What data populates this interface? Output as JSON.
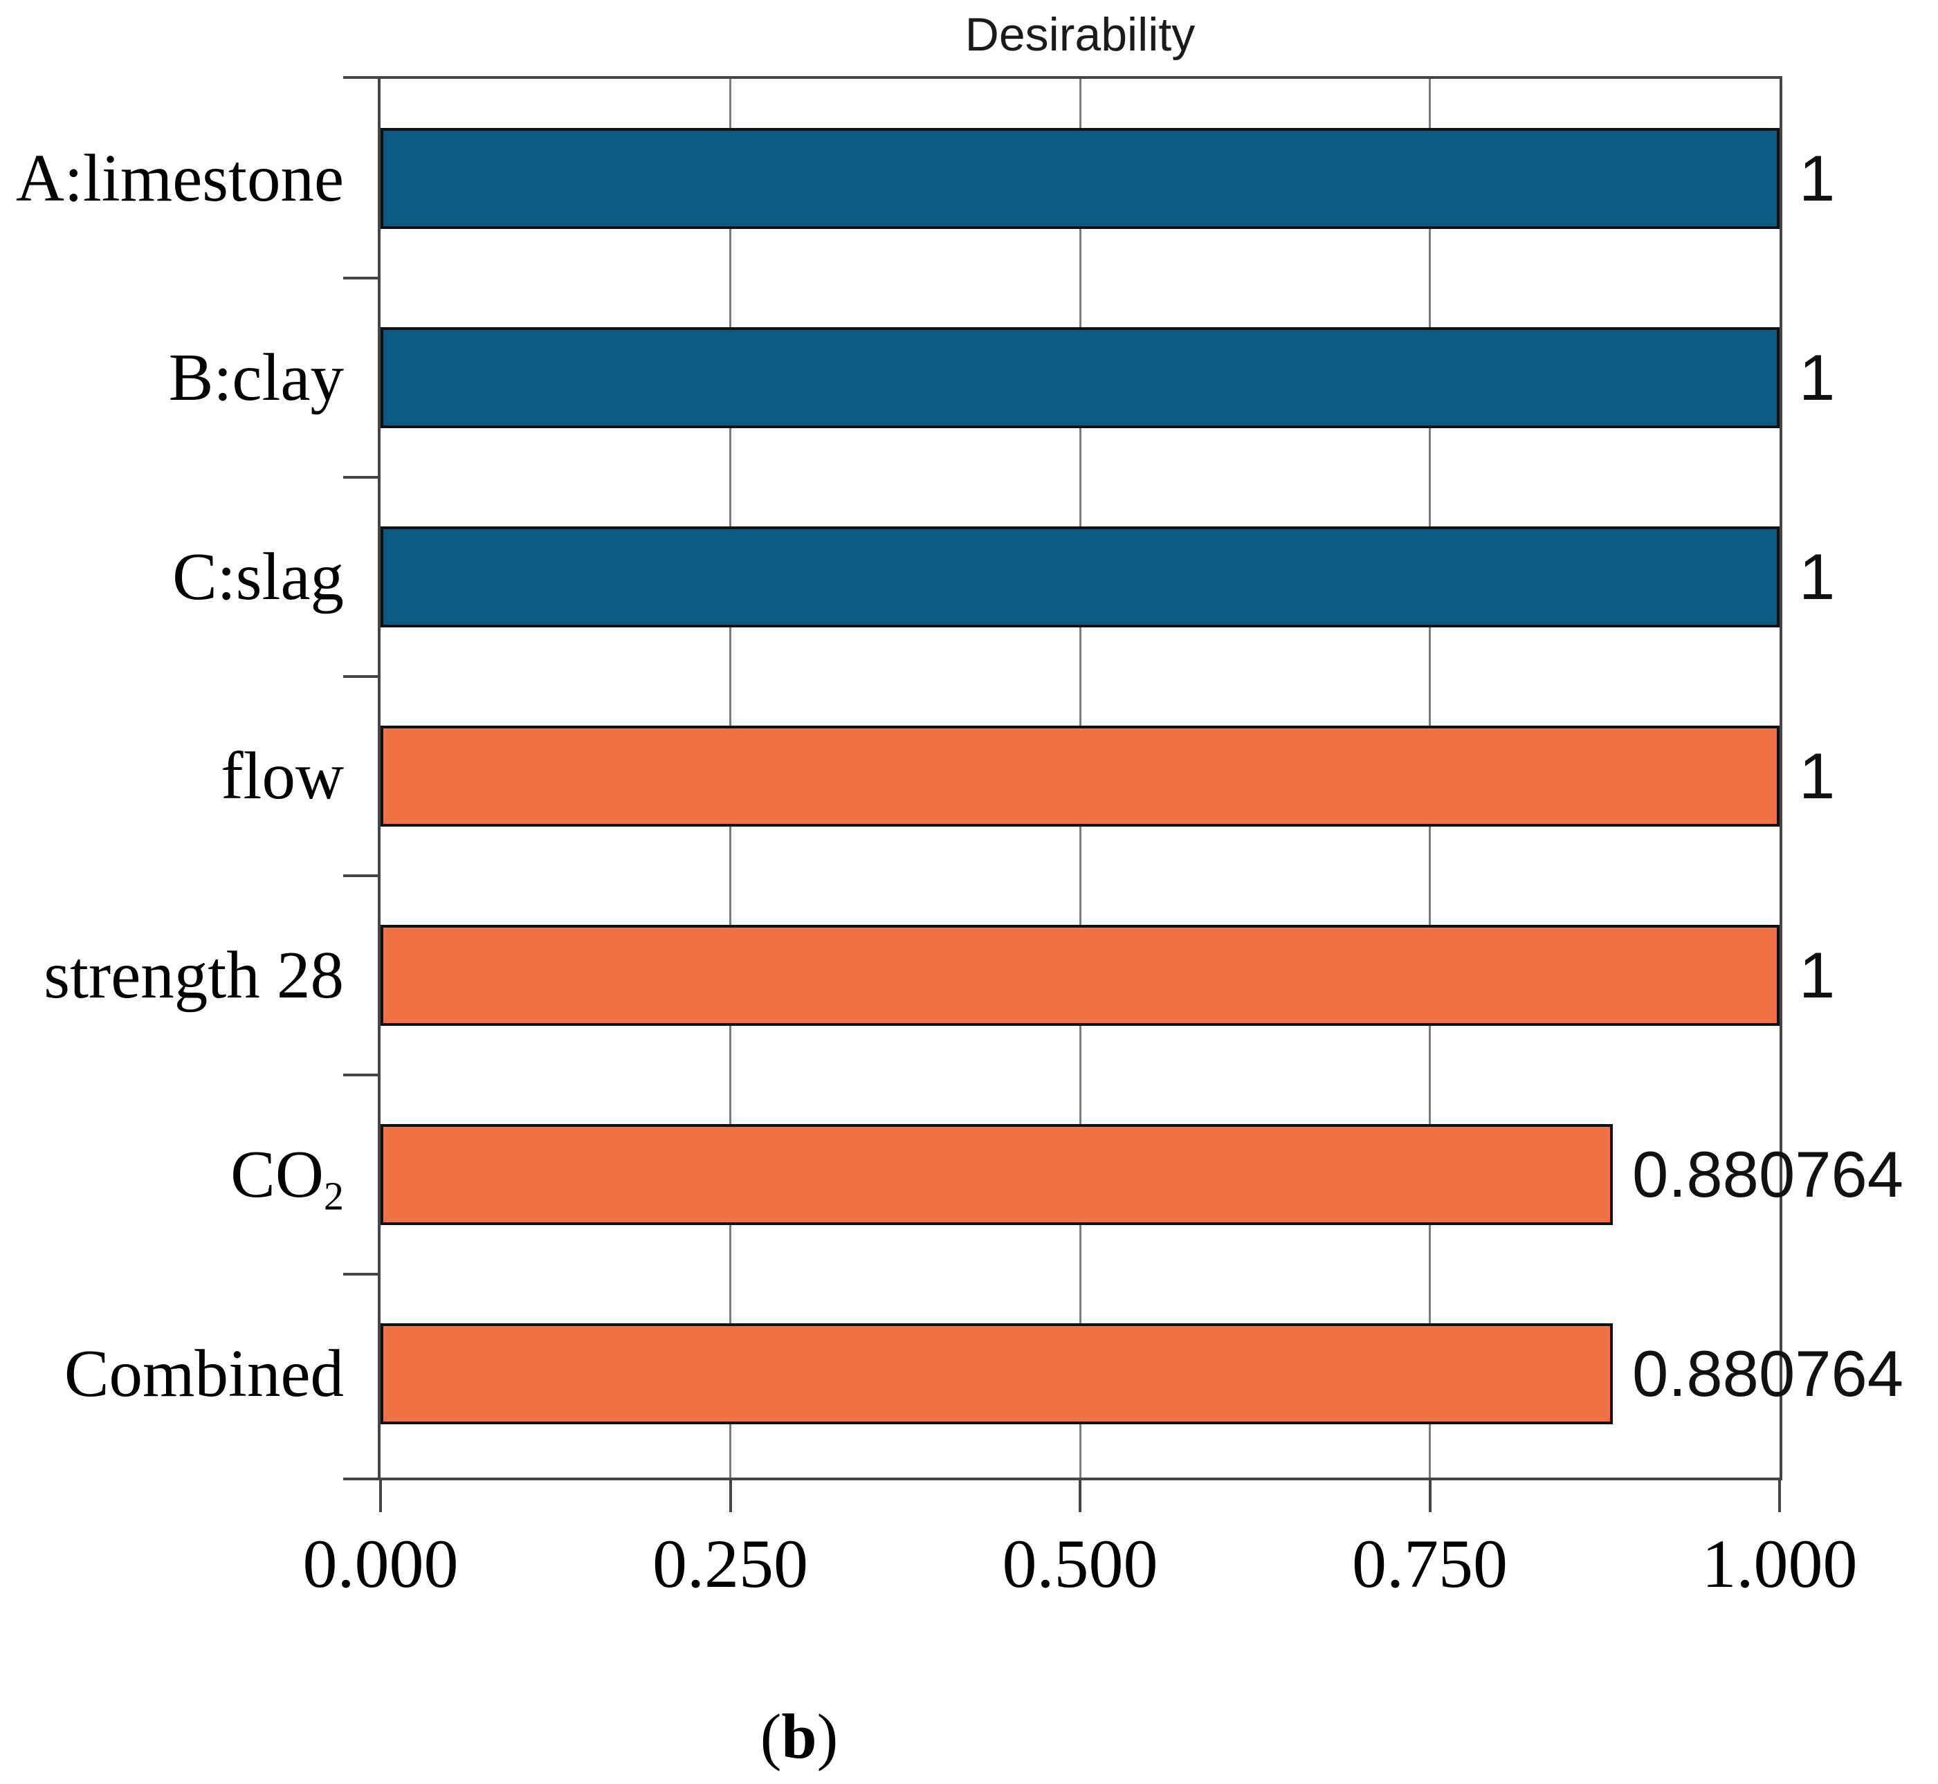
{
  "title": "Desirability",
  "caption": {
    "open": "(",
    "letter": "b",
    "close": ")"
  },
  "colors": {
    "factor_blue": "#0b5a84",
    "response_orange": "#f07346",
    "grid": "#7b7b7b",
    "frame": "#454545",
    "bar_border": "#101010"
  },
  "chart_data": {
    "type": "bar",
    "orientation": "horizontal",
    "title": "Desirability",
    "categories": [
      "A:limestone",
      "B:clay",
      "C:slag",
      "flow",
      "strength 28",
      "CO₂",
      "Combined"
    ],
    "values": [
      1,
      1,
      1,
      1,
      1,
      0.880764,
      0.880764
    ],
    "value_labels": [
      "1",
      "1",
      "1",
      "1",
      "1",
      "0.880764",
      "0.880764"
    ],
    "bar_color_keys": [
      "factor_blue",
      "factor_blue",
      "factor_blue",
      "response_orange",
      "response_orange",
      "response_orange",
      "response_orange"
    ],
    "xlim": [
      0,
      1
    ],
    "x_ticks": [
      0,
      0.25,
      0.5,
      0.75,
      1
    ],
    "x_tick_labels": [
      "0.000",
      "0.250",
      "0.500",
      "0.750",
      "1.000"
    ],
    "gridlines_at": [
      0.25,
      0.5,
      0.75
    ],
    "legend": "none",
    "grid": "vertical-only"
  }
}
